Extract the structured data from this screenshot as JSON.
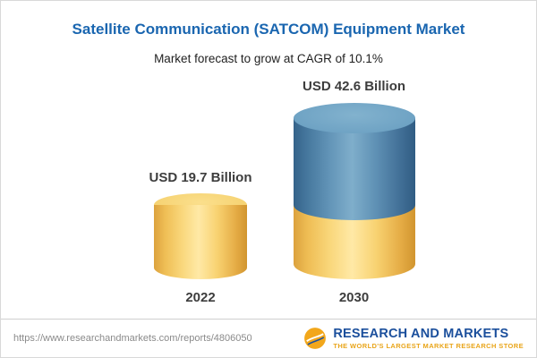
{
  "header": {
    "title": "Satellite Communication (SATCOM) Equipment Market",
    "subtitle": "Market forecast to grow at CAGR of 10.1%"
  },
  "chart_data": {
    "type": "bar",
    "title": "Satellite Communication (SATCOM) Equipment Market",
    "subtitle": "Market forecast to grow at CAGR of 10.1%",
    "cagr_percent": 10.1,
    "categories": [
      "2022",
      "2030"
    ],
    "values": [
      19.7,
      42.6
    ],
    "unit": "USD Billion",
    "value_labels": [
      "USD 19.7 Billion",
      "USD 42.6 Billion"
    ],
    "series_note": "2030 bar lower segment equals 2022 value (19.7); upper blue segment is forecast growth (22.9)",
    "colors": {
      "base_segment": "#f6ce65",
      "growth_segment": "#4f81a9",
      "title_text": "#1a66b0",
      "label_text": "#3d3d3d"
    },
    "grid": false,
    "legend_position": "none"
  },
  "footer": {
    "url": "https://www.researchandmarkets.com/reports/4806050",
    "brand": "RESEARCH AND MARKETS",
    "tagline": "THE WORLD'S LARGEST MARKET RESEARCH STORE"
  }
}
